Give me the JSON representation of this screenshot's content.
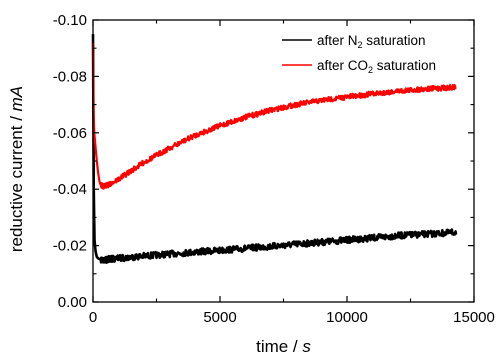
{
  "chart_data": {
    "type": "line",
    "xlabel": "time / s",
    "xlabel_text": "time / ",
    "xlabel_unit": "s",
    "ylabel": "reductive current / mA",
    "ylabel_text": "reductive current / ",
    "ylabel_unit": "mA",
    "xlim": [
      0,
      15000
    ],
    "ylim": [
      0.0,
      -0.1
    ],
    "y_reversed": true,
    "x_ticks": [
      0,
      5000,
      10000,
      15000
    ],
    "x_tick_labels": [
      "0",
      "5000",
      "10000",
      "15000"
    ],
    "y_ticks": [
      0.0,
      -0.02,
      -0.04,
      -0.06,
      -0.08,
      -0.1
    ],
    "y_tick_labels": [
      "0.00",
      "-0.02",
      "-0.04",
      "-0.06",
      "-0.08",
      "-0.10"
    ],
    "grid": false,
    "legend_position": "top-right",
    "series": [
      {
        "name": "after N2 saturation",
        "legend_text": "after N",
        "legend_sub": "2",
        "legend_tail": " saturation",
        "color": "#000000",
        "x": [
          0,
          30,
          60,
          100,
          150,
          200,
          300,
          500,
          1000,
          2000,
          3000,
          4000,
          5000,
          6000,
          7000,
          8000,
          9000,
          10000,
          11000,
          12000,
          13000,
          14000,
          14300
        ],
        "y": [
          -0.095,
          -0.04,
          -0.022,
          -0.018,
          -0.016,
          -0.0155,
          -0.015,
          -0.015,
          -0.0155,
          -0.0163,
          -0.017,
          -0.0177,
          -0.0183,
          -0.019,
          -0.0197,
          -0.0205,
          -0.0212,
          -0.022,
          -0.0227,
          -0.0235,
          -0.024,
          -0.0245,
          -0.0248
        ]
      },
      {
        "name": "after CO2 saturation",
        "legend_text": "after CO",
        "legend_sub": "2",
        "legend_tail": " saturation",
        "color": "#ff0000",
        "x": [
          0,
          20,
          50,
          100,
          150,
          200,
          250,
          300,
          400,
          600,
          1000,
          1500,
          2000,
          3000,
          4000,
          5000,
          6000,
          7000,
          8000,
          9000,
          10000,
          11000,
          12000,
          13000,
          14000,
          14300
        ],
        "y": [
          -0.092,
          -0.068,
          -0.06,
          -0.055,
          -0.05,
          -0.046,
          -0.043,
          -0.0415,
          -0.041,
          -0.0415,
          -0.0435,
          -0.0465,
          -0.0495,
          -0.0545,
          -0.059,
          -0.0625,
          -0.0655,
          -0.068,
          -0.07,
          -0.0715,
          -0.0727,
          -0.0738,
          -0.0748,
          -0.0755,
          -0.076,
          -0.0762
        ]
      }
    ]
  }
}
